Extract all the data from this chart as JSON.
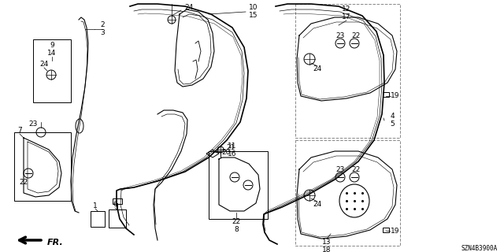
{
  "background_color": "#ffffff",
  "diagram_code": "SZN4B3900A",
  "fig_width": 6.4,
  "fig_height": 3.2,
  "dpi": 100,
  "line_color": "#000000",
  "gray_color": "#888888"
}
